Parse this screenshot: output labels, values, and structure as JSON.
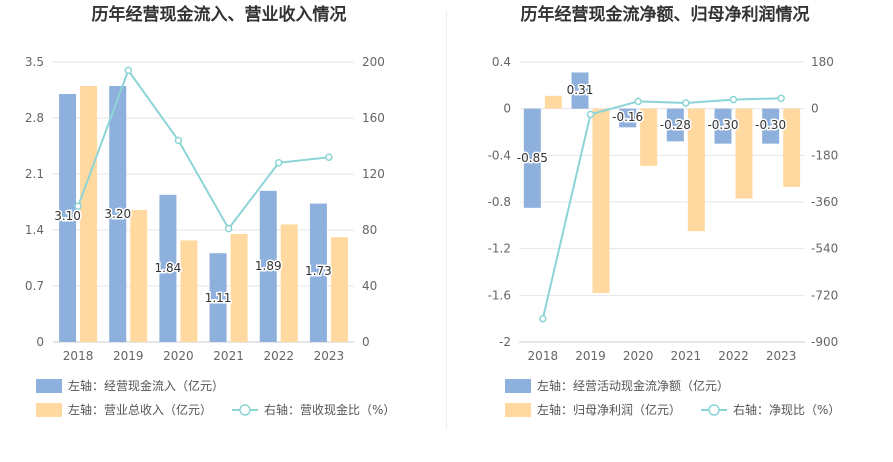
{
  "chart_data": [
    {
      "type": "bar",
      "title": "历年经营现金流入、营业收入情况",
      "categories": [
        "2018",
        "2019",
        "2020",
        "2021",
        "2022",
        "2023"
      ],
      "y_left": {
        "ticks": [
          "0",
          "0.7",
          "1.4",
          "2.1",
          "2.8",
          "3.5"
        ],
        "ylim": [
          0,
          3.5
        ]
      },
      "y_right": {
        "ticks": [
          "0",
          "40",
          "80",
          "120",
          "160",
          "200"
        ],
        "ylim": [
          0,
          200
        ]
      },
      "series": [
        {
          "name": "左轴：经营现金流入（亿元）",
          "axis": "left",
          "kind": "bar",
          "color": "#8eb0dc",
          "values": [
            3.1,
            3.2,
            1.84,
            1.11,
            1.89,
            1.73
          ],
          "labels": [
            "3.10",
            "3.20",
            "1.84",
            "1.11",
            "1.89",
            "1.73"
          ]
        },
        {
          "name": "左轴：营业总收入（亿元）",
          "axis": "left",
          "kind": "bar",
          "color": "#ffd9a0",
          "values": [
            3.2,
            1.65,
            1.27,
            1.35,
            1.47,
            1.31
          ]
        },
        {
          "name": "右轴：营收现金比（%）",
          "axis": "right",
          "kind": "line",
          "color": "#8dd4d6",
          "values": [
            97,
            194,
            144,
            81,
            128,
            132
          ]
        }
      ]
    },
    {
      "type": "bar",
      "title": "历年经营现金流净额、归母净利润情况",
      "categories": [
        "2018",
        "2019",
        "2020",
        "2021",
        "2022",
        "2023"
      ],
      "y_left": {
        "ticks": [
          "-2",
          "-1.6",
          "-1.2",
          "-0.8",
          "-0.4",
          "0",
          "0.4"
        ],
        "ylim": [
          -2,
          0.4
        ]
      },
      "y_right": {
        "ticks": [
          "-900",
          "-720",
          "-540",
          "-360",
          "-180",
          "0",
          "180"
        ],
        "ylim": [
          -900,
          180
        ]
      },
      "series": [
        {
          "name": "左轴：经营活动现金流净额（亿元）",
          "axis": "left",
          "kind": "bar",
          "color": "#8eb0dc",
          "values": [
            -0.85,
            0.31,
            -0.16,
            -0.28,
            -0.3,
            -0.3
          ],
          "labels": [
            "-0.85",
            "0.31",
            "-0.16",
            "-0.28",
            "-0.30",
            "-0.30"
          ]
        },
        {
          "name": "左轴：归母净利润（亿元）",
          "axis": "left",
          "kind": "bar",
          "color": "#ffd9a0",
          "values": [
            0.11,
            -1.58,
            -0.49,
            -1.05,
            -0.77,
            -0.67
          ]
        },
        {
          "name": "右轴：净现比（%）",
          "axis": "right",
          "kind": "line",
          "color": "#8dd4d6",
          "values": [
            -810,
            -22,
            28,
            22,
            35,
            40
          ]
        }
      ]
    }
  ]
}
